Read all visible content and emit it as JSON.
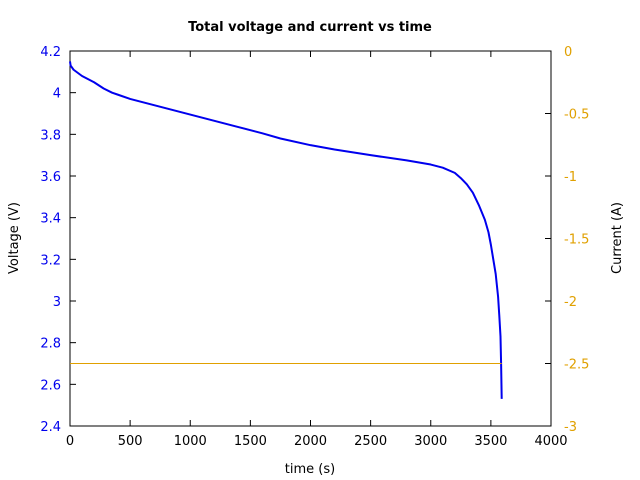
{
  "chart_data": {
    "type": "line",
    "title": "Total voltage and current vs time",
    "xlabel": "time (s)",
    "ylabel": "Voltage (V)",
    "y2label": "Current (A)",
    "xlim": [
      0,
      4000
    ],
    "ylim": [
      2.4,
      4.2
    ],
    "y2lim": [
      -3,
      0
    ],
    "grid": false,
    "legend": "none",
    "x_ticks": [
      0,
      500,
      1000,
      1500,
      2000,
      2500,
      3000,
      3500,
      4000
    ],
    "x_tick_labels": [
      "0",
      "500",
      "1000",
      "1500",
      "2000",
      "2500",
      "3000",
      "3500",
      "4000"
    ],
    "y_ticks": [
      2.4,
      2.6,
      2.8,
      3.0,
      3.2,
      3.4,
      3.6,
      3.8,
      4.0,
      4.2
    ],
    "y_tick_labels": [
      "2.4",
      "2.6",
      "2.8",
      "3",
      "3.2",
      "3.4",
      "3.6",
      "3.8",
      "4",
      "4.2"
    ],
    "y2_ticks": [
      -3,
      -2.5,
      -2,
      -1.5,
      -1,
      -0.5,
      0
    ],
    "y2_tick_labels": [
      "-3",
      "-2.5",
      "-2",
      "-1.5",
      "-1",
      "-0.5",
      "0"
    ],
    "colors": {
      "voltage": "#0000ee",
      "current": "#e0a000",
      "left_axis_text": "#0000ee",
      "right_axis_text": "#e0a000"
    },
    "series": [
      {
        "axis": "left",
        "x": [
          0,
          5,
          30,
          100,
          200,
          280,
          350,
          400,
          500,
          600,
          800,
          1000,
          1200,
          1400,
          1600,
          1750,
          2000,
          2200,
          2500,
          2800,
          3000,
          3100,
          3200,
          3250,
          3300,
          3350,
          3400,
          3450,
          3480,
          3500,
          3520,
          3540,
          3560,
          3570,
          3580,
          3585,
          3590
        ],
        "y": [
          4.15,
          4.13,
          4.11,
          4.08,
          4.05,
          4.02,
          4.0,
          3.99,
          3.97,
          3.955,
          3.925,
          3.895,
          3.865,
          3.835,
          3.805,
          3.78,
          3.748,
          3.727,
          3.7,
          3.675,
          3.655,
          3.64,
          3.615,
          3.59,
          3.56,
          3.52,
          3.46,
          3.39,
          3.33,
          3.27,
          3.2,
          3.13,
          3.02,
          2.93,
          2.83,
          2.7,
          2.53
        ]
      },
      {
        "axis": "right",
        "x": [
          0,
          3590
        ],
        "y": [
          -2.5,
          -2.5
        ]
      }
    ]
  }
}
